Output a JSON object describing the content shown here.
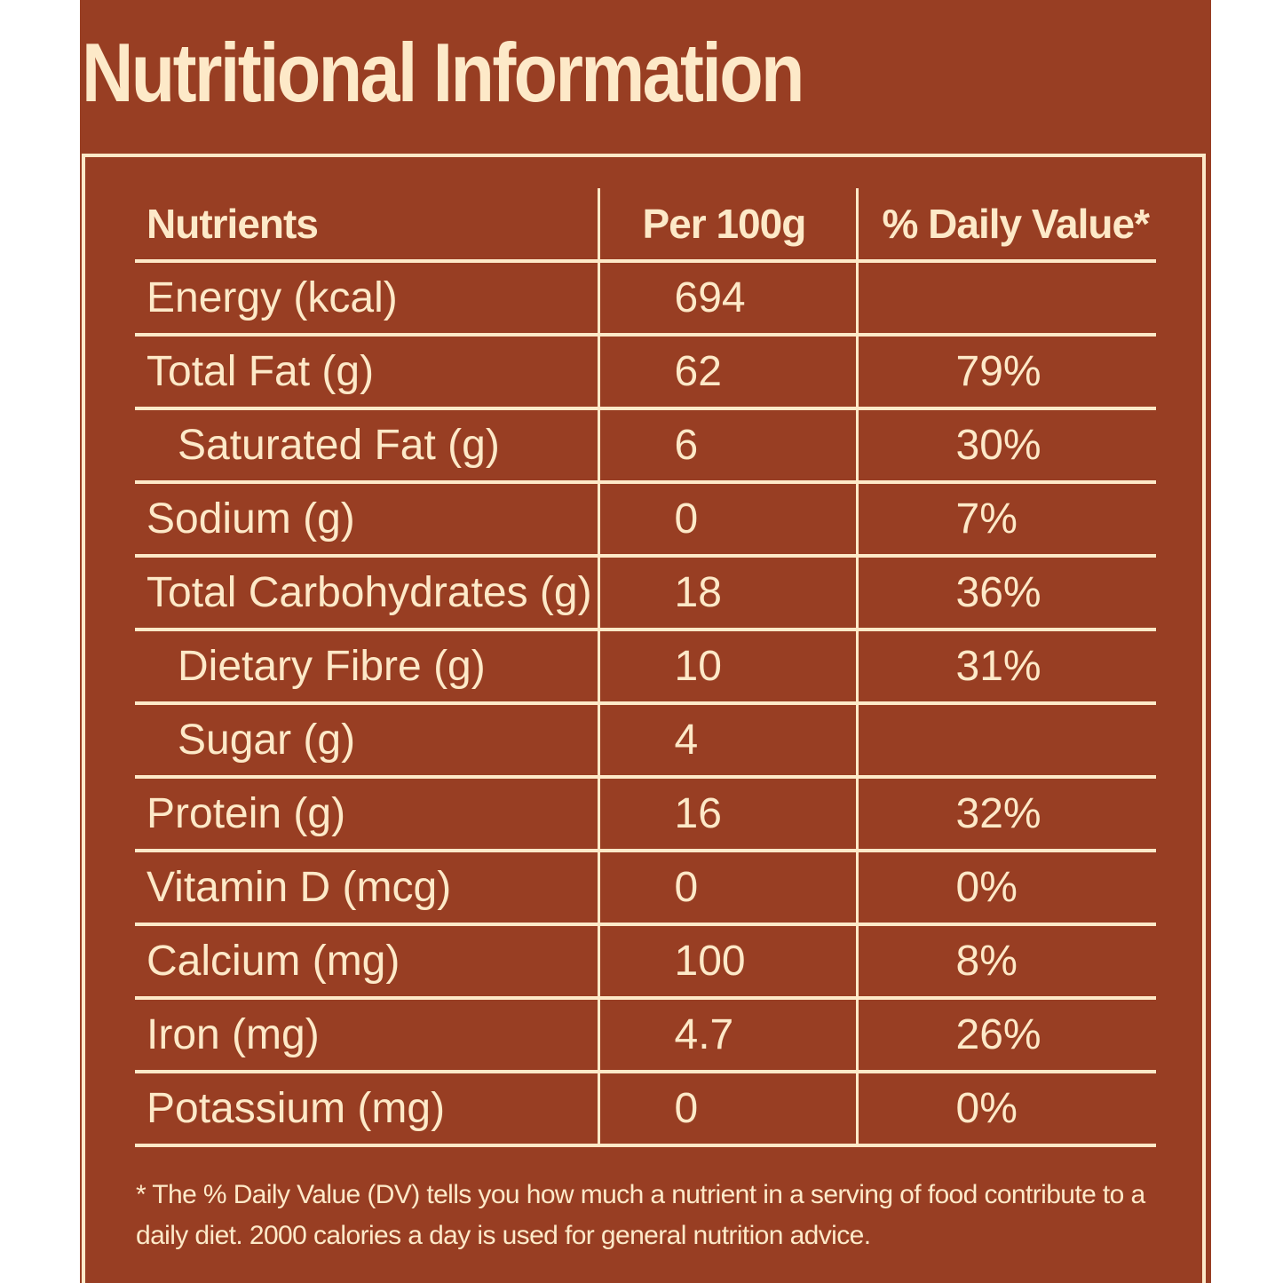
{
  "title": "Nutritional Information",
  "colors": {
    "background": "#983e23",
    "text": "#fde9c8"
  },
  "table": {
    "headers": {
      "nutrients": "Nutrients",
      "per": "Per 100g",
      "dv": "% Daily Value*"
    },
    "rows": [
      {
        "name": "Energy (kcal)",
        "value": "694",
        "dv": "",
        "indent": false
      },
      {
        "name": "Total Fat (g)",
        "value": "62",
        "dv": "79%",
        "indent": false
      },
      {
        "name": "Saturated Fat (g)",
        "value": "6",
        "dv": "30%",
        "indent": true
      },
      {
        "name": "Sodium (g)",
        "value": "0",
        "dv": "7%",
        "indent": false
      },
      {
        "name": "Total Carbohydrates (g)",
        "value": "18",
        "dv": "36%",
        "indent": false
      },
      {
        "name": "Dietary Fibre (g)",
        "value": "10",
        "dv": "31%",
        "indent": true
      },
      {
        "name": "Sugar (g)",
        "value": "4",
        "dv": "",
        "indent": true
      },
      {
        "name": "Protein (g)",
        "value": "16",
        "dv": "32%",
        "indent": false
      },
      {
        "name": "Vitamin D (mcg)",
        "value": "0",
        "dv": "0%",
        "indent": false
      },
      {
        "name": "Calcium (mg)",
        "value": "100",
        "dv": "8%",
        "indent": false
      },
      {
        "name": "Iron (mg)",
        "value": "4.7",
        "dv": "26%",
        "indent": false
      },
      {
        "name": "Potassium (mg)",
        "value": "0",
        "dv": "0%",
        "indent": false
      }
    ]
  },
  "footnote": "* The % Daily Value (DV) tells you how much a nutrient in a serving of food contribute to a daily diet. 2000 calories a day is used for general nutrition advice."
}
